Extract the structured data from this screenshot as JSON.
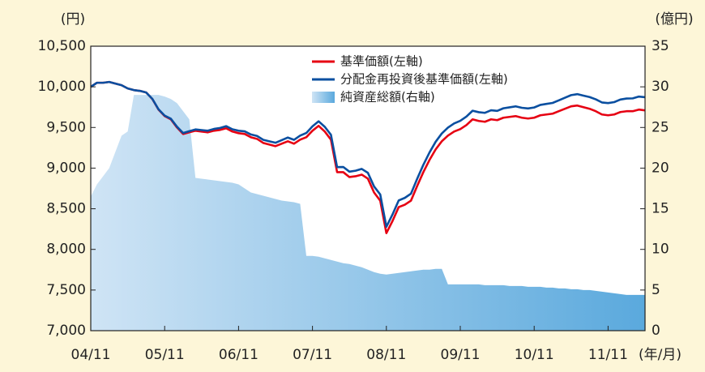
{
  "chart_data": {
    "type": "line",
    "y_unit": "(円)",
    "y2_unit": "(億円)",
    "x_unit": "(年/月)",
    "categories": [
      "04/11",
      null,
      null,
      null,
      null,
      null,
      null,
      null,
      null,
      null,
      null,
      null,
      "05/11",
      null,
      null,
      null,
      null,
      null,
      null,
      null,
      null,
      null,
      null,
      null,
      "06/11",
      null,
      null,
      null,
      null,
      null,
      null,
      null,
      null,
      null,
      null,
      null,
      "07/11",
      null,
      null,
      null,
      null,
      null,
      null,
      null,
      null,
      null,
      null,
      null,
      "08/11",
      null,
      null,
      null,
      null,
      null,
      null,
      null,
      null,
      null,
      null,
      null,
      "09/11",
      null,
      null,
      null,
      null,
      null,
      null,
      null,
      null,
      null,
      null,
      null,
      "10/11",
      null,
      null,
      null,
      null,
      null,
      null,
      null,
      null,
      null,
      null,
      null,
      "11/11",
      null,
      null,
      null,
      null,
      null,
      null
    ],
    "series": [
      {
        "name": "純資産総額(右軸)",
        "color": "#5aa9dd",
        "axis": "y2",
        "style": "area",
        "values": [
          16.5,
          18,
          19,
          20,
          22,
          24,
          24.5,
          29,
          29,
          29,
          29,
          29,
          28.8,
          28.5,
          28,
          27,
          26,
          18.8,
          18.7,
          18.6,
          18.5,
          18.4,
          18.3,
          18.2,
          18,
          17.5,
          17,
          16.8,
          16.6,
          16.4,
          16.2,
          16,
          15.9,
          15.8,
          15.6,
          9.2,
          9.2,
          9.1,
          8.9,
          8.7,
          8.5,
          8.3,
          8.2,
          8,
          7.8,
          7.5,
          7.2,
          7,
          6.9,
          7,
          7.1,
          7.2,
          7.3,
          7.4,
          7.5,
          7.5,
          7.6,
          7.6,
          5.7,
          5.7,
          5.7,
          5.7,
          5.7,
          5.7,
          5.6,
          5.6,
          5.6,
          5.6,
          5.5,
          5.5,
          5.5,
          5.4,
          5.4,
          5.4,
          5.3,
          5.3,
          5.2,
          5.2,
          5.1,
          5.1,
          5,
          5,
          4.9,
          4.8,
          4.7,
          4.6,
          4.5,
          4.4,
          4.4,
          4.4,
          4.4
        ]
      },
      {
        "name": "基準価額(左軸)",
        "color": "#e60012",
        "values": [
          10000,
          10050,
          10050,
          10060,
          10040,
          10020,
          9980,
          9960,
          9950,
          9930,
          9850,
          9720,
          9640,
          9600,
          9500,
          9420,
          9440,
          9460,
          9450,
          9440,
          9460,
          9470,
          9490,
          9450,
          9430,
          9420,
          9380,
          9360,
          9310,
          9290,
          9270,
          9300,
          9330,
          9300,
          9350,
          9380,
          9460,
          9520,
          9450,
          9350,
          8950,
          8950,
          8890,
          8900,
          8920,
          8870,
          8700,
          8600,
          8200,
          8350,
          8520,
          8550,
          8600,
          8780,
          8950,
          9100,
          9230,
          9330,
          9400,
          9450,
          9480,
          9530,
          9600,
          9580,
          9570,
          9600,
          9590,
          9620,
          9630,
          9640,
          9620,
          9610,
          9620,
          9650,
          9660,
          9670,
          9700,
          9730,
          9760,
          9770,
          9750,
          9730,
          9700,
          9660,
          9650,
          9660,
          9690,
          9700,
          9700,
          9720,
          9710
        ]
      },
      {
        "name": "分配金再投資後基準価額(左軸)",
        "color": "#0a4fa0",
        "values": [
          10000,
          10050,
          10050,
          10060,
          10040,
          10020,
          9980,
          9960,
          9950,
          9930,
          9852,
          9724,
          9646,
          9608,
          9510,
          9432,
          9454,
          9476,
          9468,
          9460,
          9482,
          9494,
          9516,
          9478,
          9460,
          9452,
          9414,
          9396,
          9348,
          9330,
          9312,
          9344,
          9376,
          9348,
          9400,
          9432,
          9514,
          9576,
          9508,
          9410,
          9012,
          9014,
          8956,
          8968,
          8990,
          8942,
          8774,
          8676,
          8278,
          8430,
          8602,
          8634,
          8686,
          8868,
          9040,
          9192,
          9324,
          9426,
          9498,
          9550,
          9582,
          9634,
          9706,
          9688,
          9680,
          9712,
          9704,
          9736,
          9748,
          9760,
          9742,
          9734,
          9746,
          9778,
          9790,
          9802,
          9834,
          9866,
          9898,
          9910,
          9892,
          9874,
          9846,
          9808,
          9800,
          9812,
          9844,
          9856,
          9858,
          9880,
          9872
        ]
      }
    ],
    "ylim": [
      7000,
      10500
    ],
    "yticks": [
      {
        "value": 7000,
        "label": "7,000"
      },
      {
        "value": 7500,
        "label": "7,500"
      },
      {
        "value": 8000,
        "label": "8,000"
      },
      {
        "value": 8500,
        "label": "8,500"
      },
      {
        "value": 9000,
        "label": "9,000"
      },
      {
        "value": 9500,
        "label": "9,500"
      },
      {
        "value": 10000,
        "label": "10,000"
      },
      {
        "value": 10500,
        "label": "10,500"
      }
    ],
    "y2lim": [
      0,
      35
    ],
    "y2ticks": [
      0,
      5,
      10,
      15,
      20,
      25,
      30,
      35
    ]
  }
}
